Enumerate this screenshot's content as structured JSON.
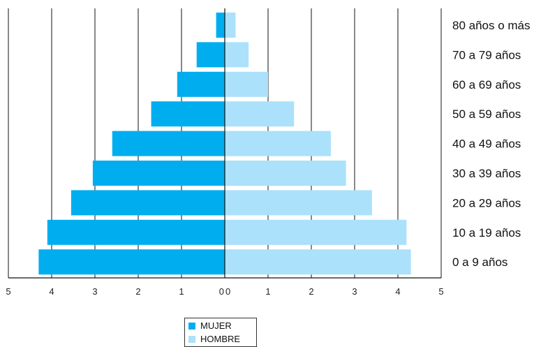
{
  "chart_data": {
    "type": "bar",
    "orientation": "horizontal-pyramid",
    "categories": [
      "80 años o más",
      "70 a 79 años",
      "60 a 69 años",
      "50 a 59 años",
      "40 a 49 años",
      "30 a 39 años",
      "20 a 29 años",
      "10 a 19 años",
      "0 a 9 años"
    ],
    "series": [
      {
        "name": "MUJER",
        "color": "#00aeef",
        "values": [
          0.2,
          0.65,
          1.1,
          1.7,
          2.6,
          3.05,
          3.55,
          4.1,
          4.3
        ]
      },
      {
        "name": "HOMBRE",
        "color": "#abe1fa",
        "values": [
          0.25,
          0.55,
          1.0,
          1.6,
          2.45,
          2.8,
          3.4,
          4.2,
          4.3
        ]
      }
    ],
    "xlim": [
      0,
      5
    ],
    "x_ticks_left": [
      "5",
      "4",
      "3",
      "2",
      "1",
      "0"
    ],
    "x_ticks_right": [
      "0",
      "1",
      "2",
      "3",
      "4",
      "5"
    ],
    "grid": "vertical",
    "legend": "bottom-center"
  }
}
